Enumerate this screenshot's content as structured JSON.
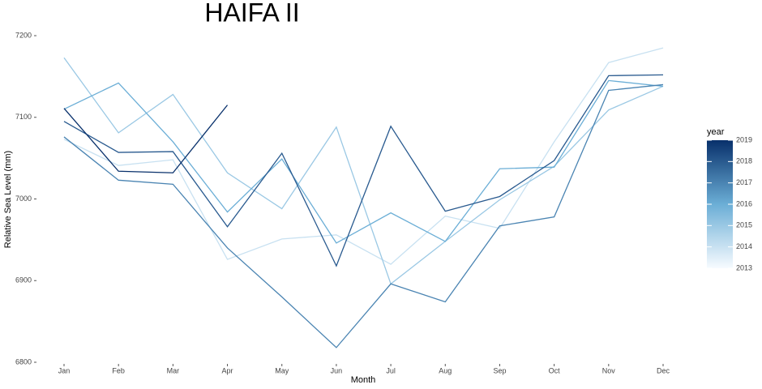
{
  "chart_data": {
    "type": "line",
    "title": "HAIFA II",
    "x_label": "Month",
    "y_label": "Relative Sea Level (mm)",
    "categories": [
      "Jan",
      "Feb",
      "Mar",
      "Apr",
      "May",
      "Jun",
      "Jul",
      "Aug",
      "Sep",
      "Oct",
      "Nov",
      "Dec"
    ],
    "series": [
      {
        "year": 2014,
        "values": [
          7073,
          7041,
          7048,
          6926,
          6951,
          6956,
          6920,
          6979,
          6964,
          7070,
          7167,
          7185
        ]
      },
      {
        "year": 2015,
        "values": [
          7173,
          7081,
          7128,
          7032,
          6988,
          7088,
          6896,
          6948,
          6999,
          7040,
          7109,
          7138
        ]
      },
      {
        "year": 2016,
        "values": [
          7110,
          7142,
          7070,
          6984,
          7049,
          6946,
          6983,
          6948,
          7037,
          7039,
          7145,
          7138
        ]
      },
      {
        "year": 2017,
        "values": [
          7076,
          7023,
          7018,
          6940,
          6880,
          6818,
          6896,
          6874,
          6967,
          6978,
          7133,
          7140
        ]
      },
      {
        "year": 2018,
        "values": [
          7095,
          7057,
          7058,
          6966,
          7056,
          6918,
          7089,
          6985,
          7003,
          7047,
          7151,
          7152
        ]
      },
      {
        "year": 2019,
        "values": [
          7111,
          7034,
          7032,
          7115,
          null,
          null,
          null,
          null,
          null,
          null,
          null,
          null
        ]
      }
    ],
    "ylim": [
      6800,
      7200
    ],
    "yticks": [
      6800,
      6900,
      7000,
      7100,
      7200
    ],
    "grid": false,
    "legend": {
      "title": "year",
      "lim": [
        2013,
        2019
      ],
      "ticks": [
        2013,
        2014,
        2015,
        2016,
        2017,
        2018,
        2019
      ],
      "colors": [
        "#f7fbff",
        "#6baed6",
        "#08306b"
      ]
    }
  }
}
